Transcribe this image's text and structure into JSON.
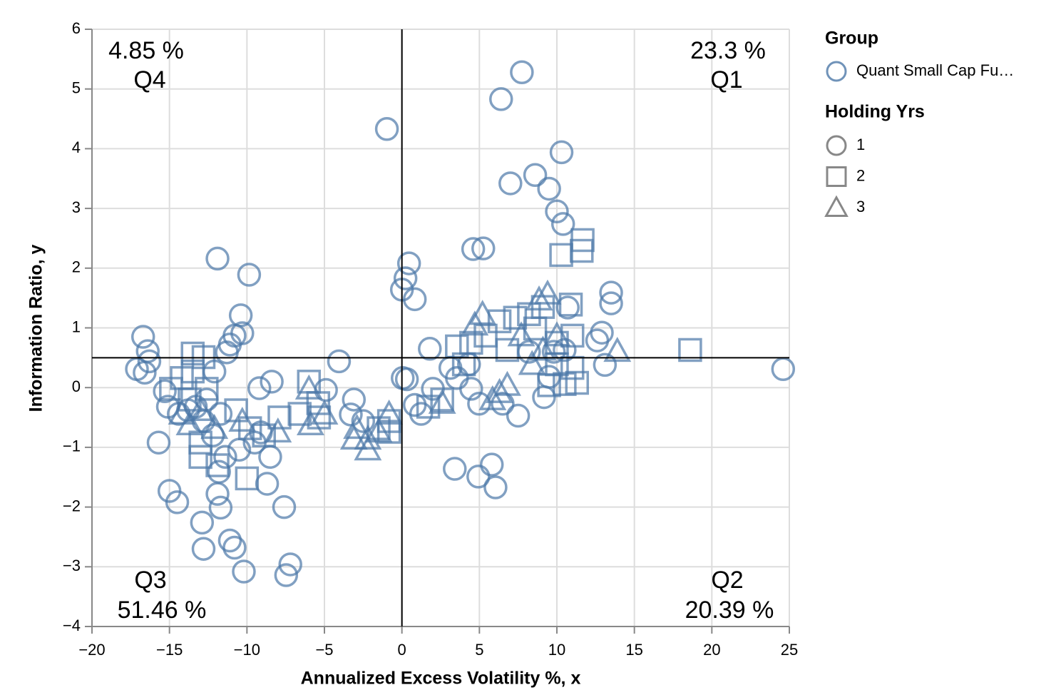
{
  "chart_data": {
    "type": "scatter",
    "x_label": "Annualized Excess Volatility %, x",
    "y_label": "Information Ratio, y",
    "xlim": [
      -20,
      25
    ],
    "ylim": [
      -4,
      6
    ],
    "xticks": [
      {
        "value": -20,
        "label": "−20"
      },
      {
        "value": -15,
        "label": "−15"
      },
      {
        "value": -10,
        "label": "−10"
      },
      {
        "value": -5,
        "label": "−5"
      },
      0,
      5,
      10,
      15,
      20,
      25
    ],
    "yticks": [
      {
        "value": -4,
        "label": "−4"
      },
      {
        "value": -3,
        "label": "−3"
      },
      {
        "value": -2,
        "label": "−2"
      },
      {
        "value": -1,
        "label": "−1"
      },
      0,
      1,
      2,
      3,
      4,
      5,
      6
    ],
    "grid": true,
    "rules": {
      "x": 0,
      "y": 0.5
    },
    "annotations": [
      {
        "quadrant": "Q4",
        "share": "4.85 %"
      },
      {
        "quadrant": "Q1",
        "share": "23.3 %"
      },
      {
        "quadrant": "Q3",
        "share": "51.46 %"
      },
      {
        "quadrant": "Q2",
        "share": "20.39 %"
      }
    ],
    "group_legend": {
      "title": "Group",
      "entries": [
        "Quant Small Cap Fu…"
      ],
      "color": "#4c78a8"
    },
    "shape_legend_title": "Holding Yrs",
    "series": [
      {
        "name": "1",
        "shape": "circle",
        "color": "#4c78a8",
        "x": [
          7.74,
          6.4,
          -0.97,
          10.3,
          8.6,
          7.0,
          9.5,
          10.0,
          10.4,
          4.6,
          5.25,
          0.46,
          0.23,
          0.0,
          0.83,
          -11.9,
          -9.86,
          -10.4,
          -10.3,
          -10.8,
          -11.1,
          -11.3,
          -16.7,
          -16.4,
          -16.3,
          -17.1,
          -16.6,
          -15.3,
          -15.1,
          -15.7,
          -15.0,
          -14.5,
          -12.9,
          -12.8,
          -11.1,
          -10.8,
          -10.2,
          -7.2,
          -7.47,
          -7.6,
          -8.7,
          -11.9,
          -11.7,
          -8.5,
          -8.4,
          -9.2,
          -4.06,
          -4.9,
          -3.1,
          -3.3,
          -2.5,
          1.8,
          0.05,
          0.32,
          2.0,
          1.24,
          0.83,
          3.41,
          4.93,
          5.8,
          6.04,
          7.5,
          6.5,
          4.98,
          4.47,
          3.13,
          3.55,
          4.33,
          13.5,
          13.5,
          12.9,
          12.6,
          13.1,
          10.7,
          9.17,
          9.5,
          10.5,
          9.8,
          8.2,
          24.6,
          -12.1,
          -12.6,
          -11.7,
          -10.5,
          -9.5,
          -9.1,
          -11.4,
          -12.2,
          -12.8,
          -13.3,
          -13.8,
          -14.4,
          -11.8
        ],
        "y": [
          5.28,
          4.83,
          4.33,
          3.94,
          3.56,
          3.42,
          3.33,
          2.95,
          2.74,
          2.32,
          2.33,
          2.08,
          1.83,
          1.64,
          1.48,
          2.16,
          1.89,
          1.21,
          0.91,
          0.87,
          0.72,
          0.59,
          0.85,
          0.61,
          0.44,
          0.31,
          0.25,
          -0.06,
          -0.32,
          -0.92,
          -1.73,
          -1.92,
          -2.26,
          -2.7,
          -2.56,
          -2.68,
          -3.08,
          -2.96,
          -3.14,
          -2.0,
          -1.61,
          -1.78,
          -2.01,
          -1.16,
          0.1,
          -0.01,
          0.44,
          -0.04,
          -0.2,
          -0.45,
          -0.56,
          0.65,
          0.16,
          0.14,
          -0.02,
          -0.44,
          -0.29,
          -1.36,
          -1.49,
          -1.29,
          -1.67,
          -0.47,
          -0.27,
          -0.27,
          -0.02,
          0.33,
          0.16,
          0.39,
          1.59,
          1.41,
          0.92,
          0.79,
          0.38,
          1.34,
          -0.16,
          0.18,
          0.63,
          0.6,
          0.6,
          0.31,
          0.27,
          -0.2,
          -0.44,
          -1.04,
          -0.92,
          -0.75,
          -1.16,
          -0.8,
          -0.56,
          -0.32,
          -0.38,
          -0.44,
          -1.41
        ]
      },
      {
        "name": "2",
        "shape": "square",
        "color": "#4c78a8",
        "x": [
          11.66,
          11.6,
          10.28,
          10.9,
          18.6,
          11.3,
          10.5,
          9.5,
          11.0,
          10.0,
          9.1,
          8.2,
          7.3,
          6.3,
          5.4,
          4.47,
          3.55,
          2.6,
          1.7,
          -0.83,
          -0.83,
          -1.5,
          -5.35,
          -5.4,
          -6.0,
          -6.6,
          -7.9,
          -10.0,
          -11.9,
          -13.0,
          -13.0,
          -13.5,
          -12.8,
          -13.5,
          -14.2,
          -14.9,
          -13.7,
          -12.6,
          -10.7,
          -9.8,
          -8.9,
          6.8,
          4.0,
          10.0,
          11.0,
          8.6
        ],
        "y": [
          2.47,
          2.29,
          2.22,
          1.39,
          0.63,
          0.08,
          0.06,
          0.04,
          0.87,
          0.75,
          1.35,
          1.23,
          1.17,
          1.11,
          0.87,
          0.75,
          0.69,
          -0.2,
          -0.32,
          -0.74,
          -0.56,
          -0.68,
          -0.5,
          -0.26,
          0.1,
          -0.44,
          -0.5,
          -1.52,
          -1.3,
          -1.16,
          -0.92,
          0.57,
          0.51,
          0.27,
          0.16,
          -0.02,
          -0.2,
          -0.02,
          -0.38,
          -0.68,
          -0.8,
          0.63,
          0.39,
          0.39,
          0.33,
          0.99
        ]
      },
      {
        "name": "3",
        "shape": "triangle",
        "color": "#4c78a8",
        "x": [
          9.4,
          8.85,
          5.2,
          4.7,
          13.9,
          8.4,
          6.8,
          6.3,
          5.85,
          2.6,
          -0.83,
          -1.5,
          -2.2,
          -2.2,
          -3.1,
          -2.9,
          -5.0,
          -5.9,
          -6.0,
          -8.0,
          -10.3,
          -13.7,
          -14.2,
          -13.0,
          -12.1,
          10.0,
          9.1,
          7.7
        ],
        "y": [
          1.57,
          1.47,
          1.23,
          1.05,
          0.61,
          0.39,
          0.04,
          -0.08,
          -0.2,
          -0.26,
          -0.44,
          -0.74,
          -1.04,
          -0.86,
          -0.86,
          -0.68,
          -0.44,
          -0.62,
          -0.02,
          -0.74,
          -0.56,
          -0.62,
          -0.44,
          -0.38,
          -0.68,
          0.87,
          0.63,
          0.87
        ]
      }
    ]
  }
}
